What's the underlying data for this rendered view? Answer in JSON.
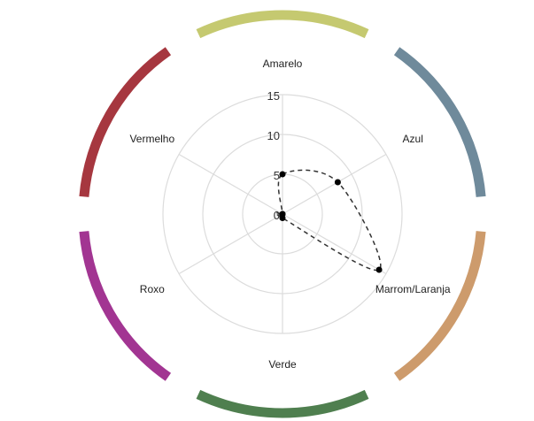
{
  "chart_data": {
    "type": "radar",
    "categories": [
      "Amarelo",
      "Azul",
      "Marrom/Laranja",
      "Verde",
      "Roxo",
      "Vermelho"
    ],
    "values": [
      5,
      8,
      14,
      0.5,
      0,
      0
    ],
    "radial_ticks": [
      "0",
      "5",
      "10",
      "15"
    ],
    "rlim": [
      0,
      15
    ],
    "grid": true,
    "series_style": "dashed-smooth",
    "segment_colors": [
      "#c5c970",
      "#6f8a9b",
      "#cd9b6c",
      "#4f7f4f",
      "#a23592",
      "#a6373f"
    ]
  }
}
